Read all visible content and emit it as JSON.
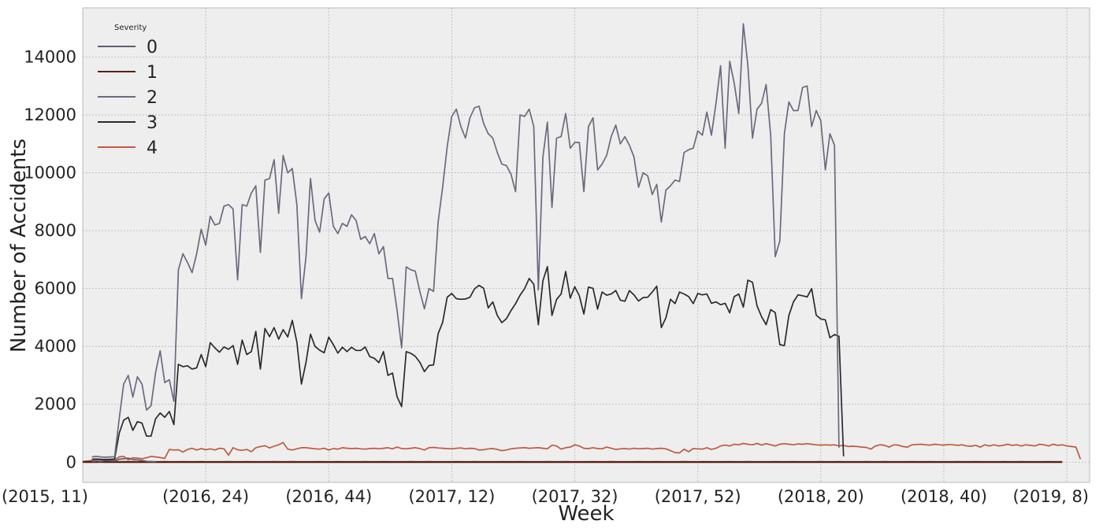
{
  "chart_data": {
    "type": "line",
    "xlabel": "Week",
    "ylabel": "Number of Accidents",
    "legend_title": "Severity",
    "legend_position": "top-left",
    "grid": true,
    "ylim": [
      -700,
      15700
    ],
    "xlim": [
      0,
      221
    ],
    "x_ticks": [
      {
        "index": 0,
        "label": "(2015, 11)"
      },
      {
        "index": 27,
        "label": "(2016, 24)"
      },
      {
        "index": 54,
        "label": "(2016, 44)"
      },
      {
        "index": 81,
        "label": "(2017, 12)"
      },
      {
        "index": 108,
        "label": "(2017, 32)"
      },
      {
        "index": 135,
        "label": "(2017, 52)"
      },
      {
        "index": 162,
        "label": "(2018, 20)"
      },
      {
        "index": 189,
        "label": "(2018, 40)"
      },
      {
        "index": 216,
        "label": "(2019, 8)"
      }
    ],
    "y_ticks": [
      0,
      2000,
      4000,
      6000,
      8000,
      10000,
      12000,
      14000
    ],
    "series": [
      {
        "name": "0",
        "color": "#5f5e70",
        "start": 2,
        "values": [
          20,
          40,
          30,
          60,
          50,
          40,
          100,
          120,
          140,
          90,
          80,
          60,
          30,
          20,
          10
        ]
      },
      {
        "name": "1",
        "color": "#5a1f10",
        "start": 0,
        "values": [
          10,
          8,
          9,
          7,
          10,
          8,
          9,
          6,
          5,
          7,
          8,
          6,
          5,
          4,
          5,
          6,
          5,
          4,
          6,
          5,
          4,
          5,
          6,
          5,
          4,
          5,
          6,
          5,
          4,
          5,
          4,
          5,
          6,
          5,
          4,
          5,
          6,
          5,
          4,
          5,
          4,
          5,
          6,
          5,
          4,
          5,
          6,
          5,
          4,
          5,
          4,
          5,
          6,
          5,
          4,
          5,
          6,
          5,
          4,
          5,
          4,
          5,
          6,
          5,
          4,
          5,
          6,
          5,
          4,
          5,
          4,
          5,
          6,
          5,
          4,
          5,
          6,
          5,
          4,
          5,
          4,
          5,
          6,
          5,
          4,
          5,
          6,
          5,
          4,
          5,
          4,
          5,
          6,
          5,
          4,
          5,
          6,
          5,
          4,
          5,
          4,
          5,
          6,
          5,
          4,
          5,
          6,
          5,
          4,
          5,
          4,
          5,
          6,
          5,
          4,
          5,
          6,
          5,
          4,
          5,
          4,
          5,
          6,
          5,
          4,
          5,
          6,
          5,
          4,
          5,
          4,
          5,
          6,
          5,
          4,
          5,
          6,
          5,
          4,
          5,
          4,
          5,
          6,
          5,
          4,
          5,
          6,
          5,
          4,
          5,
          4,
          5,
          6,
          5,
          4,
          5,
          6,
          5,
          4,
          5,
          4,
          5,
          6,
          5,
          4,
          5,
          6,
          5,
          4,
          5,
          4,
          5,
          6,
          5,
          4,
          5,
          6,
          5,
          4,
          5,
          4,
          5,
          6,
          5,
          4,
          5,
          6,
          5,
          4,
          5,
          4,
          5,
          6,
          5,
          4,
          5,
          6,
          5,
          4,
          5,
          4,
          5,
          6,
          5,
          4,
          5,
          6,
          5,
          4,
          5,
          4,
          5,
          6,
          5,
          4,
          5
        ]
      },
      {
        "name": "2",
        "color": "#6b6a7e",
        "start": 2,
        "values": [
          180,
          200,
          180,
          170,
          180,
          190,
          1500,
          2700,
          3000,
          2250,
          2950,
          2700,
          1800,
          1950,
          3100,
          3850,
          2750,
          2850,
          2100,
          6650,
          7200,
          6900,
          6550,
          7200,
          8050,
          7500,
          8500,
          8200,
          8250,
          8850,
          8900,
          8750,
          6300,
          8900,
          8850,
          9300,
          9550,
          7250,
          9750,
          9800,
          10450,
          8600,
          10600,
          10000,
          10150,
          8900,
          5650,
          7100,
          9800,
          8350,
          7950,
          9100,
          9300,
          8150,
          7900,
          8250,
          8150,
          8550,
          8350,
          7700,
          7800,
          7550,
          7900,
          7200,
          7450,
          6350,
          6350,
          5250,
          3950,
          6750,
          6650,
          6600,
          5900,
          5300,
          6000,
          5900,
          8300,
          9500,
          10900,
          11950,
          12200,
          11600,
          11200,
          11900,
          12250,
          12300,
          11700,
          11350,
          11200,
          10700,
          10300,
          10250,
          9950,
          9350,
          12000,
          11950,
          12200,
          11600,
          5950,
          10550,
          11750,
          8800,
          11200,
          11250,
          12050,
          10850,
          11050,
          11050,
          9350,
          11600,
          11900,
          10100,
          10300,
          10600,
          11250,
          11650,
          11000,
          11250,
          10950,
          10550,
          9500,
          10000,
          9900,
          9250,
          9600,
          8300,
          9400,
          9550,
          9750,
          9700,
          10700,
          10800,
          10850,
          11450,
          11300,
          12100,
          11300,
          12400,
          13700,
          10850,
          13850,
          13100,
          12050,
          15150,
          13700,
          11200,
          12200,
          12400,
          13050,
          11300,
          7100,
          7650,
          11350,
          12450,
          12150,
          12150,
          12950,
          13000,
          11600,
          12150,
          11800,
          10100,
          11350,
          10950,
          500
        ]
      },
      {
        "name": "3",
        "color": "#2a2a2e",
        "start": 2,
        "values": [
          100,
          110,
          100,
          90,
          100,
          110,
          1000,
          1450,
          1550,
          1100,
          1400,
          1350,
          900,
          900,
          1500,
          1700,
          1550,
          1750,
          1300,
          3380,
          3300,
          3330,
          3220,
          3260,
          3720,
          3300,
          4130,
          3950,
          3800,
          3980,
          3900,
          4030,
          3380,
          4220,
          3720,
          3820,
          4520,
          3220,
          4620,
          4340,
          4650,
          4250,
          4580,
          4330,
          4900,
          4150,
          2700,
          3450,
          4420,
          4000,
          3870,
          3780,
          4320,
          4060,
          3770,
          3970,
          3820,
          3970,
          3860,
          3860,
          3980,
          3650,
          3590,
          3440,
          3820,
          3000,
          3080,
          2260,
          1920,
          3820,
          3760,
          3660,
          3450,
          3130,
          3340,
          3360,
          4440,
          4830,
          5700,
          5830,
          5650,
          5630,
          5640,
          5700,
          5990,
          6110,
          6010,
          5330,
          5540,
          5070,
          4820,
          4960,
          5240,
          5480,
          5770,
          6000,
          6350,
          6150,
          4750,
          6270,
          6760,
          5070,
          5620,
          5810,
          6590,
          5670,
          6060,
          5750,
          5120,
          6050,
          6010,
          5290,
          5880,
          5770,
          5810,
          5930,
          5600,
          5560,
          5930,
          5780,
          5570,
          5690,
          5700,
          5880,
          6080,
          4650,
          4990,
          5630,
          5480,
          5880,
          5810,
          5720,
          5480,
          5830,
          5780,
          5810,
          5490,
          5540,
          5440,
          5490,
          5160,
          5720,
          5810,
          5360,
          6290,
          6220,
          5400,
          5030,
          4750,
          5270,
          5170,
          4060,
          4030,
          5070,
          5540,
          5780,
          5750,
          5710,
          6000,
          5080,
          4950,
          4920,
          4300,
          4410,
          4350,
          200
        ]
      },
      {
        "name": "4",
        "color": "#c0593f",
        "start": 0,
        "values": [
          20,
          40,
          60,
          90,
          80,
          100,
          90,
          80,
          180,
          200,
          80,
          150,
          140,
          120,
          150,
          200,
          180,
          160,
          130,
          440,
          420,
          430,
          350,
          440,
          480,
          420,
          470,
          430,
          460,
          420,
          480,
          460,
          240,
          500,
          430,
          410,
          440,
          360,
          500,
          540,
          570,
          490,
          550,
          600,
          680,
          450,
          420,
          460,
          500,
          500,
          480,
          460,
          450,
          480,
          420,
          470,
          450,
          500,
          480,
          470,
          480,
          460,
          450,
          470,
          480,
          460,
          480,
          500,
          460,
          520,
          470,
          460,
          480,
          500,
          470,
          420,
          500,
          510,
          490,
          480,
          470,
          460,
          480,
          490,
          460,
          480,
          470,
          420,
          430,
          460,
          470,
          440,
          400,
          420,
          460,
          480,
          490,
          500,
          480,
          490,
          500,
          480,
          460,
          590,
          560,
          450,
          500,
          520,
          600,
          560,
          480,
          470,
          500,
          470,
          460,
          520,
          480,
          440,
          460,
          470,
          450,
          480,
          460,
          470,
          480,
          450,
          470,
          480,
          460,
          400,
          330,
          320,
          450,
          360,
          470,
          460,
          450,
          500,
          440,
          480,
          560,
          590,
          560,
          620,
          600,
          650,
          620,
          600,
          650,
          590,
          640,
          600,
          560,
          620,
          640,
          620,
          600,
          630,
          620,
          640,
          620,
          600,
          590,
          600,
          590,
          600,
          560,
          580,
          540,
          550,
          540,
          520,
          510,
          450,
          560,
          600,
          580,
          520,
          600,
          590,
          540,
          520,
          600,
          610,
          620,
          600,
          590,
          620,
          600,
          590,
          610,
          600,
          580,
          600,
          560,
          550,
          580,
          520,
          600,
          560,
          600,
          560,
          580,
          620,
          580,
          600,
          560,
          600,
          580,
          560,
          620,
          600,
          560,
          620,
          580,
          600,
          560,
          540,
          520,
          100
        ]
      }
    ]
  }
}
